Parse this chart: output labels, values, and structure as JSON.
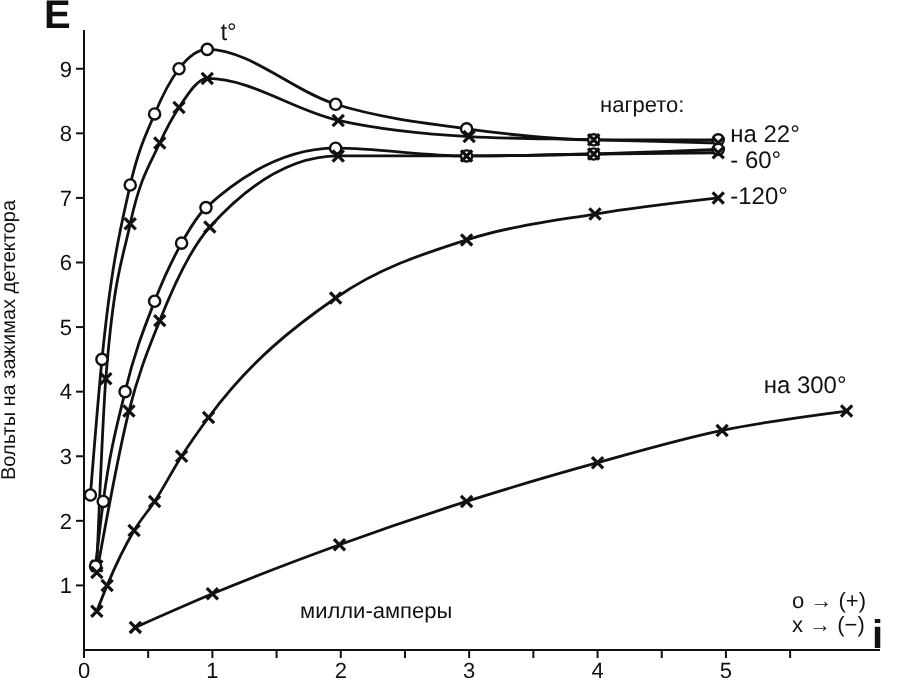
{
  "chart_data": {
    "type": "line",
    "xlabel": "милли-амперы",
    "ylabel": "Вольты на зажимах детектора",
    "xlim": [
      0,
      6.2
    ],
    "ylim": [
      0,
      9.6
    ],
    "xticks": [
      0,
      {
        "value": 0.5,
        "label": null
      },
      1,
      {
        "value": 1.5,
        "label": null
      },
      2,
      {
        "value": 2.5,
        "label": null
      },
      3,
      {
        "value": 3.5,
        "label": null
      },
      4,
      {
        "value": 4.5,
        "label": null
      },
      5,
      {
        "value": 5.5,
        "label": null
      }
    ],
    "yticks": [
      1,
      2,
      3,
      4,
      5,
      6,
      7,
      8,
      9
    ],
    "line_style": "solid",
    "series": [
      {
        "color": "#111111",
        "marker": "circle",
        "x": [
          0.05,
          0.14,
          0.36,
          0.55,
          0.74,
          0.96,
          1.96,
          2.98,
          3.97,
          4.94
        ],
        "values": [
          2.4,
          4.5,
          7.2,
          8.3,
          9.0,
          9.3,
          8.45,
          8.07,
          7.9,
          7.9
        ]
      },
      {
        "color": "#111111",
        "marker": "cross",
        "x": [
          0.1,
          0.17,
          0.36,
          0.59,
          0.74,
          0.96,
          1.98,
          3.0,
          3.97,
          4.94
        ],
        "values": [
          1.3,
          4.2,
          6.6,
          7.85,
          8.4,
          8.85,
          8.2,
          7.95,
          7.9,
          7.85
        ]
      },
      {
        "color": "#111111",
        "marker": "circle",
        "x": [
          0.09,
          0.15,
          0.32,
          0.55,
          0.76,
          0.95,
          1.96,
          2.98,
          3.97,
          4.94
        ],
        "values": [
          1.3,
          2.3,
          4.0,
          5.4,
          6.3,
          6.85,
          7.77,
          7.65,
          7.68,
          7.75
        ]
      },
      {
        "color": "#111111",
        "marker": "cross",
        "x": [
          0.1,
          0.35,
          0.59,
          0.98,
          1.98,
          2.98,
          3.97,
          4.94
        ],
        "values": [
          1.2,
          3.7,
          5.1,
          6.55,
          7.65,
          7.65,
          7.68,
          7.7
        ]
      },
      {
        "color": "#111111",
        "marker": "cross",
        "x": [
          0.1,
          0.18,
          0.39,
          0.55,
          0.76,
          0.97,
          1.96,
          2.98,
          3.98,
          4.94
        ],
        "values": [
          0.6,
          1.0,
          1.85,
          2.3,
          3.0,
          3.6,
          5.45,
          6.35,
          6.75,
          7.0
        ]
      },
      {
        "color": "#111111",
        "marker": "cross",
        "x": [
          0.4,
          1.0,
          1.99,
          2.98,
          4.0,
          4.97,
          5.94
        ],
        "values": [
          0.35,
          0.87,
          1.63,
          2.3,
          2.9,
          3.4,
          3.7
        ]
      }
    ],
    "annotations": [
      "E",
      "i",
      "нагрето:",
      "o → (+)",
      "x → (−)",
      {
        "text": "t°",
        "x": 1,
        "y": 9.3
      },
      {
        "text": "на 22°",
        "x": 4.94,
        "y": 7.9
      },
      {
        "text": "- 60°",
        "x": 4.94,
        "y": 7.75
      },
      {
        "text": "-120°",
        "x": 4.94,
        "y": 7.0
      },
      {
        "text": "на 300°",
        "x": 5.94,
        "y": 3.7
      }
    ]
  }
}
